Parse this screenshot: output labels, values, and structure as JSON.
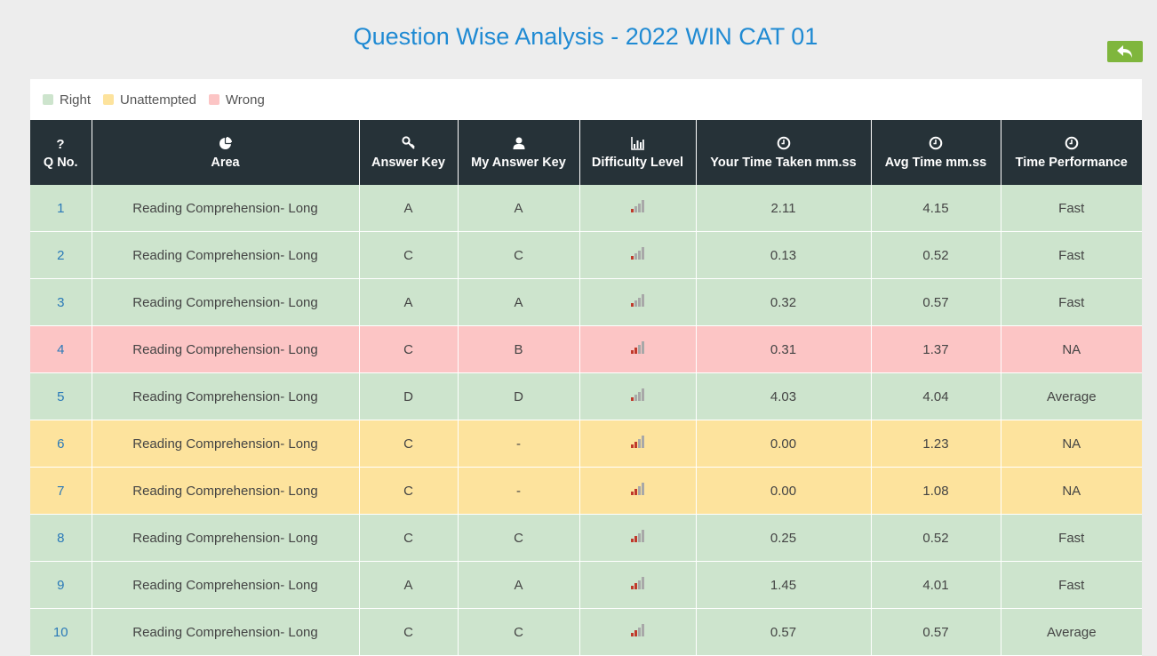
{
  "page": {
    "title": "Question Wise Analysis - 2022 WIN CAT 01"
  },
  "back_button": {
    "icon": "reply-arrow-icon"
  },
  "legend": [
    {
      "label": "Right",
      "color": "#cde4cd"
    },
    {
      "label": "Unattempted",
      "color": "#fde39d"
    },
    {
      "label": "Wrong",
      "color": "#fcc5c5"
    }
  ],
  "table": {
    "headers": [
      {
        "label": "Q No.",
        "icon": "question-icon"
      },
      {
        "label": "Area",
        "icon": "pie-chart-icon"
      },
      {
        "label": "Answer Key",
        "icon": "key-icon"
      },
      {
        "label": "My Answer Key",
        "icon": "user-icon"
      },
      {
        "label": "Difficulty Level",
        "icon": "bar-chart-icon"
      },
      {
        "label": "Your Time Taken mm.ss",
        "icon": "clock-icon"
      },
      {
        "label": "Avg Time mm.ss",
        "icon": "clock-icon"
      },
      {
        "label": "Time Performance",
        "icon": "clock-icon"
      }
    ],
    "rows": [
      {
        "qno": "1",
        "area": "Reading Comprehension- Long",
        "answer_key": "A",
        "my_answer": "A",
        "difficulty": 1,
        "time_taken": "2.11",
        "avg_time": "4.15",
        "performance": "Fast",
        "status": "right"
      },
      {
        "qno": "2",
        "area": "Reading Comprehension- Long",
        "answer_key": "C",
        "my_answer": "C",
        "difficulty": 1,
        "time_taken": "0.13",
        "avg_time": "0.52",
        "performance": "Fast",
        "status": "right"
      },
      {
        "qno": "3",
        "area": "Reading Comprehension- Long",
        "answer_key": "A",
        "my_answer": "A",
        "difficulty": 1,
        "time_taken": "0.32",
        "avg_time": "0.57",
        "performance": "Fast",
        "status": "right"
      },
      {
        "qno": "4",
        "area": "Reading Comprehension- Long",
        "answer_key": "C",
        "my_answer": "B",
        "difficulty": 2,
        "time_taken": "0.31",
        "avg_time": "1.37",
        "performance": "NA",
        "status": "wrong"
      },
      {
        "qno": "5",
        "area": "Reading Comprehension- Long",
        "answer_key": "D",
        "my_answer": "D",
        "difficulty": 1,
        "time_taken": "4.03",
        "avg_time": "4.04",
        "performance": "Average",
        "status": "right"
      },
      {
        "qno": "6",
        "area": "Reading Comprehension- Long",
        "answer_key": "C",
        "my_answer": "-",
        "difficulty": 2,
        "time_taken": "0.00",
        "avg_time": "1.23",
        "performance": "NA",
        "status": "unattempted"
      },
      {
        "qno": "7",
        "area": "Reading Comprehension- Long",
        "answer_key": "C",
        "my_answer": "-",
        "difficulty": 2,
        "time_taken": "0.00",
        "avg_time": "1.08",
        "performance": "NA",
        "status": "unattempted"
      },
      {
        "qno": "8",
        "area": "Reading Comprehension- Long",
        "answer_key": "C",
        "my_answer": "C",
        "difficulty": 2,
        "time_taken": "0.25",
        "avg_time": "0.52",
        "performance": "Fast",
        "status": "right"
      },
      {
        "qno": "9",
        "area": "Reading Comprehension- Long",
        "answer_key": "A",
        "my_answer": "A",
        "difficulty": 2,
        "time_taken": "1.45",
        "avg_time": "4.01",
        "performance": "Fast",
        "status": "right"
      },
      {
        "qno": "10",
        "area": "Reading Comprehension- Long",
        "answer_key": "C",
        "my_answer": "C",
        "difficulty": 2,
        "time_taken": "0.57",
        "avg_time": "0.57",
        "performance": "Average",
        "status": "right"
      }
    ]
  },
  "colors": {
    "header_bg": "#263238",
    "title": "#1f8ad3",
    "difficulty_active": "#c0392b",
    "difficulty_inactive": "#a8a8a8"
  }
}
